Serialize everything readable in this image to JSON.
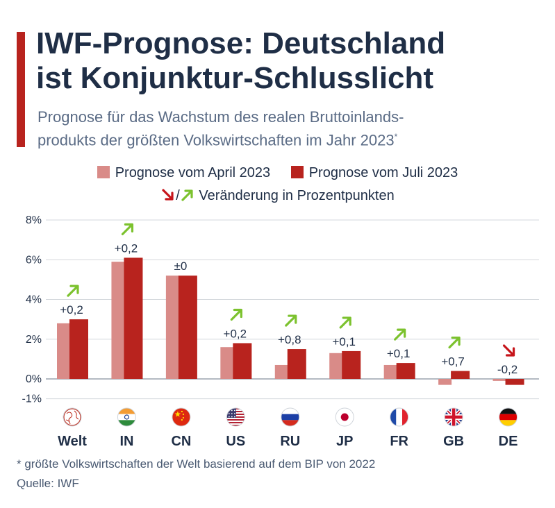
{
  "title": {
    "line1": "IWF-Prognose: Deutschland",
    "line2": "ist Konjunktur-Schlusslicht"
  },
  "subtitle": {
    "line1": "Prognose für das Wachstum des realen Bruttoinlands-",
    "line2": "produkts der größten Volkswirtschaften im Jahr 2023",
    "marker": "*"
  },
  "legend": {
    "april": "Prognose vom April 2023",
    "july": "Prognose vom Juli 2023",
    "separator": "/",
    "change": "Veränderung in Prozentpunkten"
  },
  "footnote": "* größte Volkswirtschaften der Welt basierend auf dem BIP von 2022",
  "source": "Quelle: IWF",
  "colors": {
    "april": "#d98b88",
    "july": "#b8231e",
    "arrow_up": "#7cc22e",
    "arrow_down": "#c6151b",
    "title": "#1f2e46",
    "accent": "#b8231e"
  },
  "chart_data": {
    "type": "bar",
    "categories": [
      "Welt",
      "IN",
      "CN",
      "US",
      "RU",
      "JP",
      "FR",
      "GB",
      "DE"
    ],
    "flag_icons": [
      "globe-icon",
      "flag-india-icon",
      "flag-china-icon",
      "flag-usa-icon",
      "flag-russia-icon",
      "flag-japan-icon",
      "flag-france-icon",
      "flag-uk-icon",
      "flag-germany-icon"
    ],
    "series": [
      {
        "name": "Prognose vom April 2023",
        "values": [
          2.8,
          5.9,
          5.2,
          1.6,
          0.7,
          1.3,
          0.7,
          -0.3,
          -0.1
        ]
      },
      {
        "name": "Prognose vom Juli 2023",
        "values": [
          3.0,
          6.1,
          5.2,
          1.8,
          1.5,
          1.4,
          0.8,
          0.4,
          -0.3
        ]
      }
    ],
    "change_labels": [
      "+0,2",
      "+0,2",
      "±0",
      "+0,2",
      "+0,8",
      "+0,1",
      "+0,1",
      "+0,7",
      "-0,2"
    ],
    "change_direction": [
      "up",
      "up",
      "none",
      "up",
      "up",
      "up",
      "up",
      "up",
      "down"
    ],
    "yticks": [
      -1,
      0,
      2,
      4,
      6,
      8
    ],
    "ytick_labels": [
      "-1%",
      "0%",
      "2%",
      "4%",
      "6%",
      "8%"
    ],
    "ylim": [
      -1,
      8
    ],
    "grid": true,
    "legend_position": "top-center"
  }
}
